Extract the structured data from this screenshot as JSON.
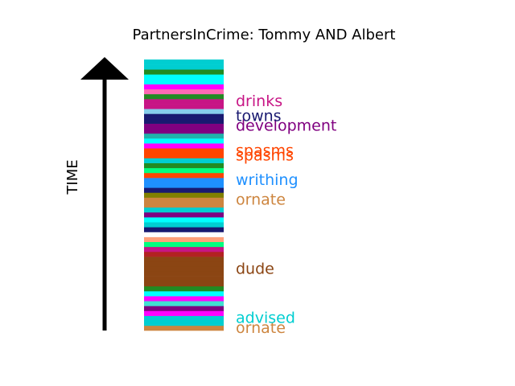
{
  "chart_data": {
    "type": "timeline-bar",
    "title": "PartnersInCrime: Tommy AND Albert",
    "ylabel": "TIME",
    "segments": [
      {
        "color": "#cd853f"
      },
      {
        "color": "#00ced1"
      },
      {
        "color": "#00ced1"
      },
      {
        "color": "#ff00ff"
      },
      {
        "color": "#800080"
      },
      {
        "color": "#40e0d0"
      },
      {
        "color": "#ff00ff"
      },
      {
        "color": "#00ffff"
      },
      {
        "color": "#228b22"
      },
      {
        "color": "#8b4513"
      },
      {
        "color": "#8b4513"
      },
      {
        "color": "#8b4513"
      },
      {
        "color": "#8b4513"
      },
      {
        "color": "#8b4513"
      },
      {
        "color": "#8b4513"
      },
      {
        "color": "#b22222"
      },
      {
        "color": "#c71585"
      },
      {
        "color": "#00ff7f"
      },
      {
        "color": "#ffa07a"
      },
      {
        "color": "#ffffff"
      },
      {
        "color": "#191970"
      },
      {
        "color": "#00ced1"
      },
      {
        "color": "#00ffff"
      },
      {
        "color": "#800080"
      },
      {
        "color": "#00ced1"
      },
      {
        "color": "#cd853f"
      },
      {
        "color": "#cd853f"
      },
      {
        "color": "#808000"
      },
      {
        "color": "#191970"
      },
      {
        "color": "#1e90ff"
      },
      {
        "color": "#1e90ff"
      },
      {
        "color": "#ff4500"
      },
      {
        "color": "#00ff7f"
      },
      {
        "color": "#228b22"
      },
      {
        "color": "#00ced1"
      },
      {
        "color": "#ff4500"
      },
      {
        "color": "#ff4500"
      },
      {
        "color": "#ff00ff"
      },
      {
        "color": "#00ffff"
      },
      {
        "color": "#20b2aa"
      },
      {
        "color": "#800080"
      },
      {
        "color": "#800080"
      },
      {
        "color": "#191970"
      },
      {
        "color": "#191970"
      },
      {
        "color": "#87ceeb"
      },
      {
        "color": "#c71585"
      },
      {
        "color": "#c71585"
      },
      {
        "color": "#228b22"
      },
      {
        "color": "#ff69b4"
      },
      {
        "color": "#ff00ff"
      },
      {
        "color": "#00ffff"
      },
      {
        "color": "#00ffff"
      },
      {
        "color": "#228b22"
      },
      {
        "color": "#00ced1"
      },
      {
        "color": "#00ced1"
      }
    ],
    "labels": [
      {
        "text": "ornate",
        "segment": 0,
        "color": "#cd853f"
      },
      {
        "text": "advised",
        "segment": 2,
        "color": "#00ced1"
      },
      {
        "text": "dude",
        "segment": 12,
        "color": "#8b4513"
      },
      {
        "text": "ornate",
        "segment": 26,
        "color": "#cd853f"
      },
      {
        "text": "writhing",
        "segment": 30,
        "color": "#1e90ff"
      },
      {
        "text": "spasms",
        "segment": 35,
        "color": "#ff4500"
      },
      {
        "text": "spasms",
        "segment": 36,
        "color": "#ff4500"
      },
      {
        "text": "development",
        "segment": 41,
        "color": "#800080"
      },
      {
        "text": "towns",
        "segment": 43,
        "color": "#191970"
      },
      {
        "text": "drinks",
        "segment": 46,
        "color": "#c71585"
      }
    ]
  }
}
